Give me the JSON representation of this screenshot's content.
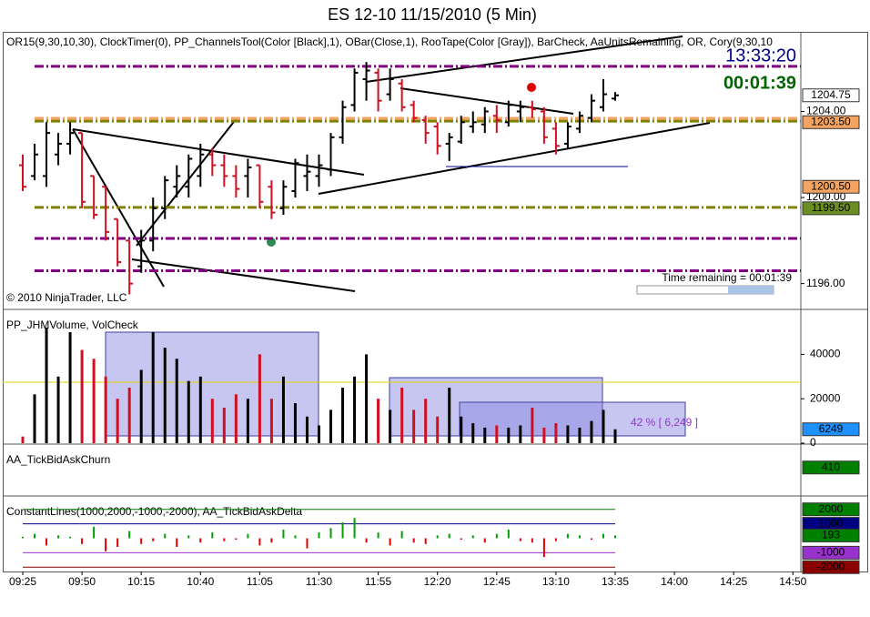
{
  "chart_data": {
    "type": "ohlc",
    "title": "ES 12-10  11/15/2010 (5 Min)",
    "indicators": "OR15(9,30,10,30), ClockTimer(0), PP_ChannelsTool(Color [Black],1), OBar(Close,1), RooTape(Color [Gray]), BarCheck, AaUnitsRemaining, OR, Cory(9,30,10",
    "clock": "13:33:20",
    "countdown": "00:01:39",
    "copyright": "© 2010 NinjaTrader, LLC",
    "time_remaining": "Time remaining = 00:01:39",
    "categories": [
      "09:25",
      null,
      null,
      null,
      null,
      "09:50",
      null,
      null,
      null,
      null,
      "10:15",
      null,
      null,
      null,
      null,
      "10:40",
      null,
      null,
      null,
      null,
      "11:05",
      null,
      null,
      null,
      null,
      "11:30",
      null,
      null,
      null,
      null,
      "11:55",
      null,
      null,
      null,
      null,
      "12:20",
      null,
      null,
      null,
      null,
      "12:45",
      null,
      null,
      null,
      null,
      "13:10",
      null,
      null,
      null,
      null,
      "13:35",
      null,
      null,
      null,
      null,
      "14:00",
      null,
      null,
      null,
      null,
      "14:25",
      null,
      null,
      null,
      null,
      "14:50"
    ],
    "open": [
      1201.5,
      1201,
      1201,
      1202,
      1202.5,
      1203,
      1201,
      1200.5,
      1199,
      1198,
      1196.8,
      1198,
      1199.5,
      1200.5,
      1200.5,
      1201,
      1202,
      1201.5,
      1201,
      1201,
      1201.5,
      1200.5,
      1199.5,
      1200.3,
      1201,
      1201,
      1201.3,
      1202.8,
      1204.3,
      1205.5,
      1205.8,
      1204.8,
      1205.3,
      1204.3,
      1203.6,
      1203.3,
      1202.5,
      1202.6,
      1203.3,
      1203.4,
      1203.8,
      1203.5,
      1204,
      1204.2,
      1204,
      1203.2,
      1202.5,
      1203.2,
      1203.7,
      1204.2,
      1204.6,
      null,
      null,
      null,
      null,
      null,
      null,
      null,
      null,
      null,
      null,
      null,
      null,
      null,
      null,
      null
    ],
    "high": [
      1202,
      1202.5,
      1203.5,
      1203,
      1203.5,
      1203,
      1201,
      1200.5,
      1199,
      1198,
      1198.5,
      1200,
      1201,
      1201.5,
      1202,
      1202.5,
      1202.3,
      1202,
      1201.5,
      1201.8,
      1201.5,
      1200.8,
      1200.8,
      1201.8,
      1202,
      1202,
      1203,
      1204.5,
      1206,
      1206.3,
      1206,
      1206,
      1205.5,
      1204.5,
      1203.8,
      1203.5,
      1203,
      1203.8,
      1204,
      1204.2,
      1204.3,
      1204.5,
      1204.5,
      1204.5,
      1204.2,
      1203.5,
      1203.5,
      1204,
      1204.8,
      1205.5,
      1204.9,
      null,
      null,
      null,
      null,
      null,
      null,
      null,
      null,
      null,
      null,
      null,
      null,
      null,
      null,
      null
    ],
    "low": [
      1200.3,
      1200.8,
      1200.5,
      1201.5,
      1202,
      1199.5,
      1199,
      1198,
      1196.8,
      1195.5,
      1196.5,
      1197.5,
      1199,
      1200,
      1200,
      1200.5,
      1201,
      1200.5,
      1200,
      1200,
      1199.5,
      1199,
      1199.2,
      1200,
      1200.3,
      1200.5,
      1201,
      1202.5,
      1204,
      1204.5,
      1204,
      1204.5,
      1204,
      1203.5,
      1202.5,
      1202,
      1201.7,
      1202.5,
      1203,
      1203,
      1203,
      1203.3,
      1203.5,
      1203.7,
      1202.5,
      1202,
      1202.3,
      1203,
      1203.5,
      1204,
      1204.5,
      null,
      null,
      null,
      null,
      null,
      null,
      null,
      null,
      null,
      null,
      null,
      null,
      null,
      null,
      null
    ],
    "close": [
      1200.5,
      1202,
      1203,
      1202.5,
      1203,
      1199.8,
      1199.2,
      1198.4,
      1197,
      1196,
      1198,
      1199.5,
      1200.8,
      1201,
      1201.8,
      1202,
      1201.5,
      1201,
      1200.4,
      1201.4,
      1199.8,
      1199.3,
      1200.5,
      1201.6,
      1201.2,
      1201.5,
      1202.8,
      1204.2,
      1205.8,
      1205.9,
      1204.5,
      1205.5,
      1204.2,
      1203.7,
      1203,
      1202.4,
      1202.8,
      1203.5,
      1203.5,
      1204,
      1203.6,
      1204.3,
      1204.2,
      1204.1,
      1202.8,
      1202.4,
      1203.3,
      1203.8,
      1204.5,
      1204.8,
      1204.75,
      null,
      null,
      null,
      null,
      null,
      null,
      null,
      null,
      null,
      null,
      null,
      null,
      null,
      null,
      null
    ],
    "up_color": "#000000",
    "down_color": "#d01020",
    "ylim": [
      1194.8,
      1207.7
    ],
    "yticks": [
      {
        "value": 1196,
        "label": "1196.00"
      },
      {
        "value": 1200,
        "label": "1200.00"
      },
      {
        "value": 1204,
        "label": "1204.00"
      }
    ],
    "levels": [
      {
        "value": 1206.1,
        "color": "#800080"
      },
      {
        "value": 1203.68,
        "color": "#f4a460"
      },
      {
        "value": 1203.55,
        "color": "#808000"
      },
      {
        "value": 1199.54,
        "color": "#808000"
      },
      {
        "value": 1198.1,
        "color": "#800080"
      },
      {
        "value": 1196.6,
        "color": "#800080"
      }
    ],
    "markers": [
      {
        "value": 1204.75,
        "color": "#ffffff"
      },
      {
        "value": 1203.5,
        "label": "1203.50",
        "color": "#f4a460"
      },
      {
        "value": 1200.5,
        "label": "1200.50",
        "color": "#f4a460"
      },
      {
        "value": 1199.5,
        "label": "1199.50",
        "color": "#6b8e23"
      }
    ],
    "volume": {
      "title": "PP_JHMVolume, VolCheck",
      "values": [
        3000,
        22000,
        52000,
        30000,
        50000,
        42000,
        38000,
        30000,
        20000,
        25000,
        33000,
        50000,
        43000,
        38000,
        28000,
        30000,
        20000,
        16000,
        22000,
        20000,
        40000,
        20000,
        30000,
        18000,
        12000,
        8000,
        15000,
        25000,
        30000,
        40000,
        20000,
        15000,
        25000,
        15000,
        20000,
        12000,
        25000,
        12000,
        9000,
        7000,
        8000,
        7000,
        8000,
        16000,
        7000,
        9000,
        8000,
        7000,
        10000,
        15000,
        6249,
        null,
        null,
        null,
        null,
        null,
        null,
        null,
        null,
        null,
        null,
        null,
        null,
        null,
        null,
        null
      ],
      "ylim": [
        0,
        59000
      ],
      "yticks": [
        0,
        20000,
        40000
      ],
      "marker": {
        "value": 6249,
        "color": "#1e90ff"
      },
      "annotation": "42 % [ 6,249 ]"
    },
    "churn": {
      "title": "AA_TickBidAskChurn",
      "ylim": [
        -3000,
        3000
      ],
      "marker": {
        "value": 410,
        "color": "#008000"
      }
    },
    "delta": {
      "title": "ConstantLines(1000,2000,-1000,-2000),  AA_TickBidAskDelta",
      "values": [
        100,
        300,
        -500,
        200,
        100,
        -400,
        800,
        -900,
        -600,
        500,
        -400,
        -200,
        300,
        -600,
        200,
        -300,
        400,
        -200,
        -100,
        300,
        -500,
        -300,
        600,
        200,
        -700,
        400,
        700,
        1100,
        1400,
        -300,
        400,
        -500,
        500,
        -300,
        -400,
        200,
        300,
        -100,
        200,
        -300,
        300,
        600,
        -200,
        -300,
        -1300,
        -200,
        300,
        200,
        -100,
        300,
        193,
        null,
        null,
        null,
        null,
        null,
        null,
        null,
        null,
        null,
        null,
        null,
        null,
        null,
        null,
        null
      ],
      "ylim": [
        -2300,
        2800
      ],
      "pos_color": "#00a000",
      "neg_color": "#e00000",
      "lines": [
        {
          "value": 2000,
          "color": "#008000"
        },
        {
          "value": 1000,
          "color": "#000080"
        },
        {
          "value": -1000,
          "color": "#9932cc"
        },
        {
          "value": -2000,
          "color": "#8b0000"
        }
      ],
      "marker": {
        "value": 193,
        "color": "#008000"
      }
    }
  }
}
